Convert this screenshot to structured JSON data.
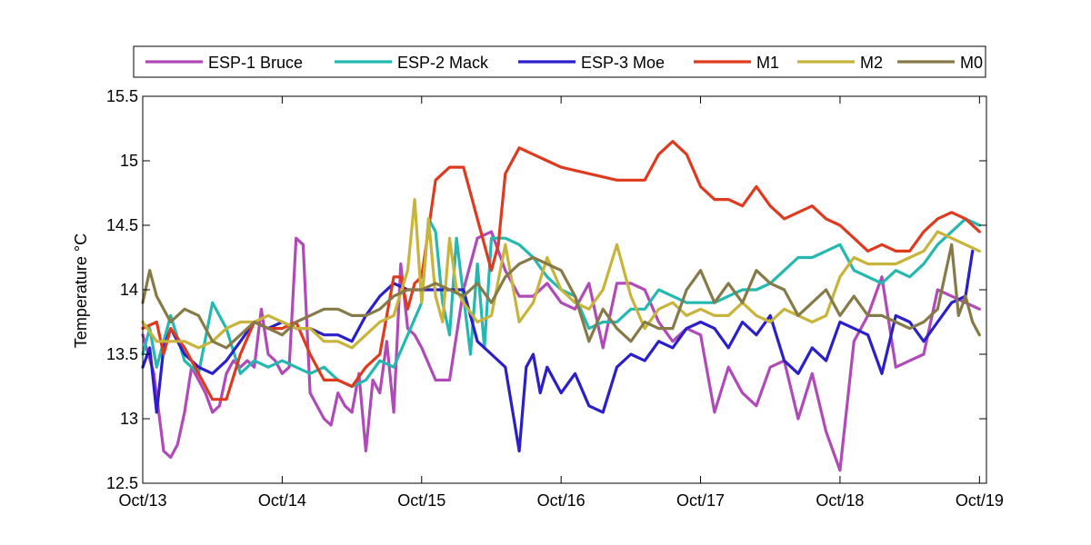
{
  "chart_data": {
    "type": "line",
    "title": "",
    "xlabel": "",
    "ylabel": "Temperature °C",
    "xlim": [
      0,
      6.05
    ],
    "ylim": [
      12.5,
      15.5
    ],
    "x_ticks": [
      0,
      1,
      2,
      3,
      4,
      5,
      6
    ],
    "x_tick_labels": [
      "Oct/13",
      "Oct/14",
      "Oct/15",
      "Oct/16",
      "Oct/17",
      "Oct/18",
      "Oct/19"
    ],
    "y_ticks": [
      12.5,
      13,
      13.5,
      14,
      14.5,
      15,
      15.5
    ],
    "y_tick_labels": [
      "12.5",
      "13",
      "13.5",
      "14",
      "14.5",
      "15",
      "15.5"
    ],
    "grid": false,
    "legend_position": "top",
    "series": [
      {
        "name": "ESP-1 Bruce",
        "color": "#B04AB8",
        "x": [
          0.0,
          0.08,
          0.15,
          0.2,
          0.25,
          0.3,
          0.35,
          0.4,
          0.45,
          0.5,
          0.55,
          0.6,
          0.65,
          0.7,
          0.75,
          0.8,
          0.85,
          0.9,
          0.95,
          1.0,
          1.05,
          1.1,
          1.15,
          1.2,
          1.25,
          1.3,
          1.35,
          1.4,
          1.45,
          1.5,
          1.55,
          1.6,
          1.65,
          1.7,
          1.75,
          1.8,
          1.85,
          1.9,
          1.95,
          2.0,
          2.1,
          2.2,
          2.3,
          2.4,
          2.5,
          2.6,
          2.7,
          2.8,
          2.9,
          3.0,
          3.1,
          3.2,
          3.3,
          3.4,
          3.5,
          3.6,
          3.7,
          3.8,
          3.9,
          4.0,
          4.1,
          4.2,
          4.3,
          4.4,
          4.5,
          4.6,
          4.7,
          4.8,
          4.9,
          5.0,
          5.1,
          5.2,
          5.3,
          5.4,
          5.5,
          5.6,
          5.7,
          5.8,
          5.9,
          6.0
        ],
        "values": [
          13.65,
          13.35,
          12.75,
          12.7,
          12.8,
          13.05,
          13.4,
          13.3,
          13.2,
          13.05,
          13.1,
          13.35,
          13.45,
          13.4,
          13.45,
          13.4,
          13.85,
          13.5,
          13.45,
          13.35,
          13.4,
          14.4,
          14.35,
          13.2,
          13.1,
          13.0,
          12.95,
          13.2,
          13.1,
          13.05,
          13.35,
          12.75,
          13.3,
          13.2,
          13.6,
          13.05,
          14.2,
          13.7,
          13.65,
          13.55,
          13.3,
          13.3,
          14.0,
          14.4,
          14.45,
          14.15,
          13.95,
          13.95,
          14.05,
          13.9,
          13.85,
          14.05,
          13.55,
          14.05,
          14.05,
          14.0,
          13.75,
          13.6,
          13.7,
          13.65,
          13.05,
          13.4,
          13.2,
          13.1,
          13.4,
          13.45,
          13.0,
          13.35,
          12.9,
          12.6,
          13.6,
          13.8,
          14.1,
          13.4,
          13.45,
          13.5,
          14.0,
          13.95,
          13.9,
          13.85
        ]
      },
      {
        "name": "ESP-2 Mack",
        "color": "#24B8B0",
        "x": [
          0.0,
          0.05,
          0.1,
          0.2,
          0.3,
          0.4,
          0.5,
          0.6,
          0.7,
          0.8,
          0.9,
          1.0,
          1.1,
          1.2,
          1.3,
          1.4,
          1.5,
          1.6,
          1.7,
          1.8,
          1.9,
          2.0,
          2.05,
          2.1,
          2.15,
          2.2,
          2.25,
          2.3,
          2.35,
          2.4,
          2.45,
          2.5,
          2.6,
          2.7,
          2.8,
          2.9,
          3.0,
          3.1,
          3.2,
          3.3,
          3.4,
          3.5,
          3.6,
          3.7,
          3.8,
          3.9,
          4.0,
          4.1,
          4.2,
          4.3,
          4.4,
          4.5,
          4.6,
          4.7,
          4.8,
          4.9,
          5.0,
          5.1,
          5.2,
          5.3,
          5.4,
          5.5,
          5.6,
          5.7,
          5.8,
          5.9,
          6.0
        ],
        "values": [
          13.5,
          13.7,
          13.4,
          13.8,
          13.45,
          13.35,
          13.9,
          13.7,
          13.35,
          13.45,
          13.4,
          13.45,
          13.4,
          13.35,
          13.4,
          13.3,
          13.25,
          13.3,
          13.45,
          13.4,
          13.65,
          13.9,
          14.55,
          14.45,
          13.9,
          13.65,
          14.4,
          13.95,
          13.5,
          14.2,
          13.55,
          14.4,
          14.4,
          14.35,
          14.25,
          14.1,
          14.0,
          13.95,
          13.7,
          13.75,
          13.75,
          13.85,
          13.85,
          14.0,
          13.95,
          13.9,
          13.9,
          13.9,
          13.95,
          14.0,
          14.0,
          14.05,
          14.15,
          14.25,
          14.25,
          14.3,
          14.35,
          14.15,
          14.1,
          14.05,
          14.15,
          14.1,
          14.2,
          14.35,
          14.45,
          14.55,
          14.5
        ]
      },
      {
        "name": "ESP-3 Moe",
        "color": "#2A1FC8",
        "x": [
          0.0,
          0.05,
          0.1,
          0.15,
          0.2,
          0.3,
          0.4,
          0.5,
          0.6,
          0.7,
          0.8,
          0.9,
          1.0,
          1.1,
          1.2,
          1.3,
          1.4,
          1.5,
          1.6,
          1.7,
          1.8,
          1.9,
          2.0,
          2.1,
          2.2,
          2.3,
          2.4,
          2.5,
          2.6,
          2.7,
          2.75,
          2.8,
          2.85,
          2.9,
          3.0,
          3.1,
          3.2,
          3.3,
          3.4,
          3.5,
          3.6,
          3.7,
          3.8,
          3.9,
          4.0,
          4.1,
          4.2,
          4.3,
          4.4,
          4.5,
          4.6,
          4.7,
          4.8,
          4.9,
          5.0,
          5.1,
          5.2,
          5.3,
          5.4,
          5.5,
          5.6,
          5.7,
          5.8,
          5.9,
          5.95
        ],
        "values": [
          13.4,
          13.55,
          13.05,
          13.55,
          13.7,
          13.5,
          13.4,
          13.35,
          13.45,
          13.6,
          13.75,
          13.7,
          13.75,
          13.7,
          13.7,
          13.65,
          13.65,
          13.6,
          13.8,
          13.95,
          14.05,
          14.0,
          14.0,
          14.0,
          14.0,
          14.0,
          13.6,
          13.5,
          13.4,
          12.75,
          13.4,
          13.5,
          13.2,
          13.4,
          13.2,
          13.35,
          13.1,
          13.05,
          13.4,
          13.5,
          13.45,
          13.6,
          13.55,
          13.7,
          13.75,
          13.7,
          13.55,
          13.75,
          13.65,
          13.8,
          13.45,
          13.35,
          13.55,
          13.45,
          13.75,
          13.7,
          13.65,
          13.35,
          13.8,
          13.75,
          13.6,
          13.75,
          13.9,
          13.95,
          14.3
        ]
      },
      {
        "name": "M1",
        "color": "#E03A1E",
        "x": [
          0.0,
          0.1,
          0.15,
          0.2,
          0.3,
          0.4,
          0.5,
          0.6,
          0.7,
          0.8,
          0.9,
          1.0,
          1.1,
          1.2,
          1.3,
          1.4,
          1.5,
          1.6,
          1.7,
          1.8,
          1.85,
          1.9,
          1.95,
          2.0,
          2.1,
          2.2,
          2.3,
          2.4,
          2.5,
          2.55,
          2.6,
          2.7,
          2.8,
          2.9,
          3.0,
          3.2,
          3.4,
          3.6,
          3.7,
          3.8,
          3.9,
          4.0,
          4.1,
          4.2,
          4.3,
          4.4,
          4.5,
          4.6,
          4.7,
          4.8,
          4.9,
          5.0,
          5.1,
          5.2,
          5.3,
          5.4,
          5.5,
          5.6,
          5.7,
          5.8,
          5.9,
          6.0
        ],
        "values": [
          13.7,
          13.75,
          13.5,
          13.7,
          13.55,
          13.35,
          13.15,
          13.15,
          13.5,
          13.75,
          13.7,
          13.7,
          13.75,
          13.5,
          13.3,
          13.3,
          13.25,
          13.4,
          13.5,
          14.1,
          14.1,
          13.85,
          14.05,
          14.1,
          14.85,
          14.95,
          14.95,
          14.55,
          14.15,
          14.35,
          14.9,
          15.1,
          15.05,
          15.0,
          14.95,
          14.9,
          14.85,
          14.85,
          15.05,
          15.15,
          15.05,
          14.8,
          14.7,
          14.7,
          14.65,
          14.8,
          14.65,
          14.55,
          14.6,
          14.65,
          14.55,
          14.5,
          14.4,
          14.3,
          14.35,
          14.3,
          14.3,
          14.45,
          14.55,
          14.6,
          14.55,
          14.45
        ]
      },
      {
        "name": "M2",
        "color": "#C8B43A",
        "x": [
          0.0,
          0.1,
          0.2,
          0.3,
          0.4,
          0.5,
          0.6,
          0.7,
          0.8,
          0.9,
          1.0,
          1.1,
          1.2,
          1.3,
          1.4,
          1.5,
          1.6,
          1.7,
          1.8,
          1.9,
          1.95,
          2.0,
          2.05,
          2.1,
          2.15,
          2.2,
          2.25,
          2.3,
          2.4,
          2.5,
          2.6,
          2.7,
          2.8,
          2.9,
          3.0,
          3.1,
          3.2,
          3.3,
          3.4,
          3.5,
          3.6,
          3.7,
          3.8,
          3.9,
          4.0,
          4.1,
          4.2,
          4.3,
          4.4,
          4.5,
          4.6,
          4.7,
          4.8,
          4.9,
          5.0,
          5.1,
          5.2,
          5.3,
          5.4,
          5.5,
          5.6,
          5.7,
          5.8,
          5.9,
          6.0
        ],
        "values": [
          13.75,
          13.6,
          13.6,
          13.6,
          13.55,
          13.6,
          13.7,
          13.75,
          13.75,
          13.8,
          13.75,
          13.7,
          13.7,
          13.6,
          13.6,
          13.55,
          13.65,
          13.75,
          13.8,
          14.15,
          14.7,
          13.9,
          14.55,
          13.95,
          13.75,
          14.4,
          14.0,
          13.9,
          13.75,
          13.8,
          14.35,
          13.75,
          13.9,
          14.25,
          14.0,
          13.9,
          13.85,
          14.0,
          14.35,
          13.95,
          13.7,
          13.85,
          13.9,
          13.8,
          13.85,
          13.8,
          13.8,
          13.9,
          13.8,
          13.75,
          13.85,
          13.8,
          13.75,
          13.8,
          14.1,
          14.25,
          14.2,
          14.2,
          14.2,
          14.25,
          14.3,
          14.45,
          14.4,
          14.35,
          14.3
        ]
      },
      {
        "name": "M0",
        "color": "#857A48",
        "x": [
          0.0,
          0.05,
          0.1,
          0.2,
          0.3,
          0.4,
          0.5,
          0.6,
          0.7,
          0.8,
          0.9,
          1.0,
          1.1,
          1.2,
          1.3,
          1.4,
          1.5,
          1.6,
          1.7,
          1.8,
          1.9,
          2.0,
          2.1,
          2.2,
          2.3,
          2.4,
          2.5,
          2.6,
          2.7,
          2.8,
          2.9,
          3.0,
          3.1,
          3.2,
          3.3,
          3.4,
          3.5,
          3.6,
          3.7,
          3.8,
          3.9,
          4.0,
          4.1,
          4.2,
          4.3,
          4.4,
          4.5,
          4.6,
          4.7,
          4.8,
          4.9,
          5.0,
          5.1,
          5.2,
          5.3,
          5.4,
          5.5,
          5.6,
          5.7,
          5.8,
          5.85,
          5.9,
          5.95,
          6.0
        ],
        "values": [
          13.9,
          14.15,
          13.95,
          13.75,
          13.85,
          13.8,
          13.6,
          13.55,
          13.65,
          13.75,
          13.7,
          13.65,
          13.75,
          13.8,
          13.85,
          13.85,
          13.8,
          13.8,
          13.85,
          13.95,
          14.0,
          14.0,
          14.05,
          14.0,
          13.95,
          14.05,
          13.9,
          14.1,
          14.2,
          14.25,
          14.2,
          14.15,
          13.95,
          13.6,
          13.85,
          13.7,
          13.6,
          13.75,
          13.7,
          13.7,
          14.0,
          14.15,
          13.9,
          14.05,
          13.9,
          14.15,
          14.05,
          14.0,
          13.8,
          13.9,
          14.0,
          13.8,
          13.95,
          13.8,
          13.8,
          13.75,
          13.7,
          13.75,
          13.85,
          14.35,
          13.8,
          13.95,
          13.75,
          13.65
        ]
      }
    ]
  }
}
